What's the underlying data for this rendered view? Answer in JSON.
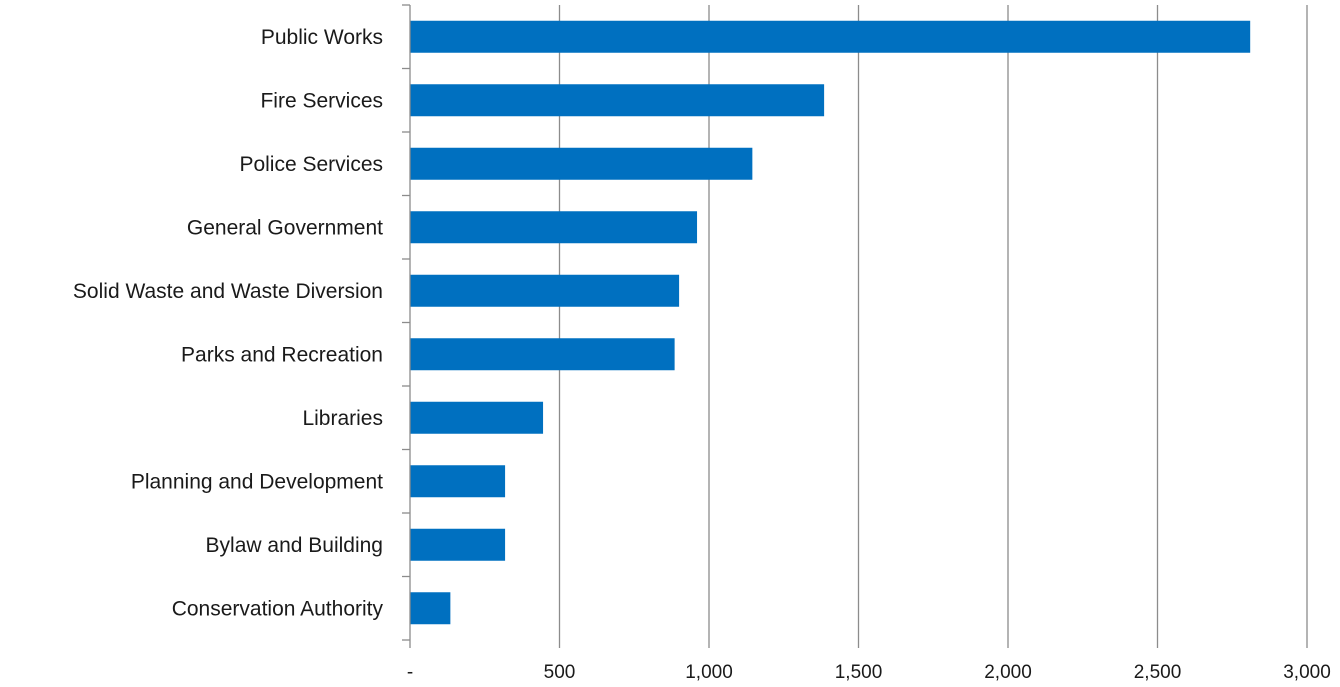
{
  "chart_data": {
    "type": "bar",
    "orientation": "horizontal",
    "title": "",
    "xlabel": "",
    "ylabel": "",
    "categories": [
      "Public Works",
      "Fire Services",
      "Police Services",
      "General Government",
      "Solid Waste and Waste Diversion",
      "Parks and Recreation",
      "Libraries",
      "Planning and Development",
      "Bylaw and Building",
      "Conservation Authority"
    ],
    "values": [
      2810,
      1385,
      1145,
      960,
      900,
      885,
      445,
      318,
      318,
      135
    ],
    "xlim": [
      0,
      3000
    ],
    "ticks": [
      0,
      500,
      1000,
      1500,
      2000,
      2500,
      3000
    ],
    "tick_labels": [
      "-",
      "500",
      "1,000",
      "1,500",
      "2,000",
      "2,500",
      "3,000"
    ],
    "grid": "vertical",
    "legend": "none",
    "colors": {
      "bar": "#0070c0",
      "grid": "#8c8c8c",
      "axis": "#8c8c8c"
    }
  }
}
